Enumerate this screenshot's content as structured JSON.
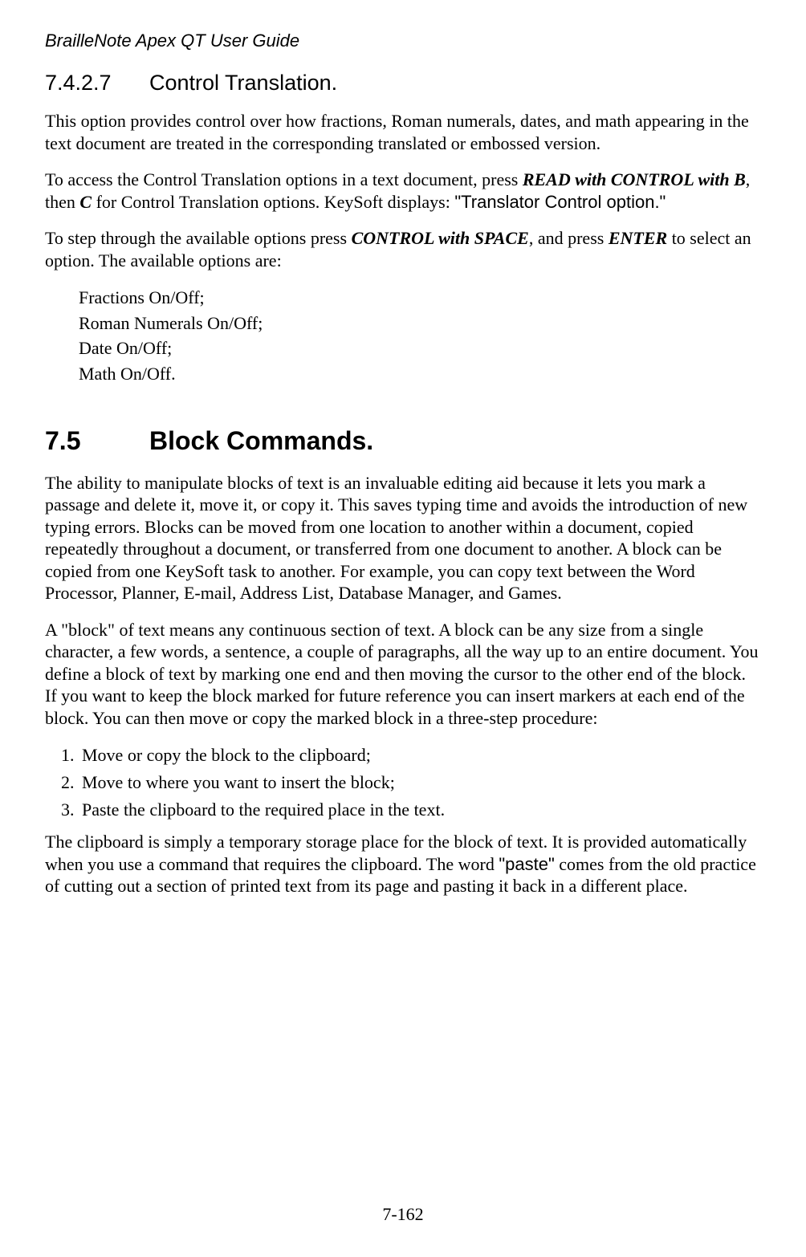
{
  "doc": {
    "title": "BrailleNote Apex QT User Guide",
    "page_num": "7-162"
  },
  "section1": {
    "number": "7.4.2.7",
    "title": "Control Translation.",
    "p1": "This option provides control over how fractions, Roman numerals, dates, and math appearing in the text document are treated in the corresponding translated or embossed version.",
    "p2a": "To access the Control Translation options in a text document, press ",
    "p2_kb1": "READ with CONTROL with B",
    "p2b": ", then ",
    "p2_kb2": "C",
    "p2c": " for Control Translation options. KeySoft displays: ",
    "p2_disp": "\"Translator Control option.\"",
    "p3a": "To step through the available options press ",
    "p3_kb1": "CONTROL with SPACE",
    "p3b": ", and press ",
    "p3_kb2": "ENTER",
    "p3c": " to select an option. The available options are:",
    "options": [
      "Fractions On/Off;",
      "Roman Numerals On/Off;",
      "Date On/Off;",
      "Math On/Off."
    ]
  },
  "section2": {
    "number": "7.5",
    "title": "Block Commands.",
    "p1": "The ability to manipulate blocks of text is an invaluable editing aid because it lets you mark a passage and delete it, move it, or copy it. This saves typing time and avoids the introduction of new typing errors. Blocks can be moved from one location to another within a document, copied repeatedly throughout a document, or transferred from one document to another. A block can be copied from one KeySoft task to another. For example, you can copy text between the Word Processor, Planner, E-mail, Address List, Database Manager, and Games.",
    "p2": "A \"block\" of text means any continuous section of text. A block can be any size from a single character, a few words, a sentence, a couple of paragraphs, all the way up to an entire document. You define a block of text by marking one end and then moving the cursor to the other end of the block. If you want to keep the block marked for future reference you can insert markers at each end of the block. You can then move or copy the marked block in a three-step procedure:",
    "steps": [
      "Move or copy the block to the clipboard;",
      "Move to where you want to insert the block;",
      "Paste the clipboard to the required place in the text."
    ],
    "p3a": "The clipboard is simply a temporary storage place for the block of text. It is provided automatically when you use a command that requires the clipboard. The word ",
    "p3_q": "\"paste\"",
    "p3b": " comes from the old practice of cutting out a section of printed text from its page and pasting it back in a different place."
  }
}
